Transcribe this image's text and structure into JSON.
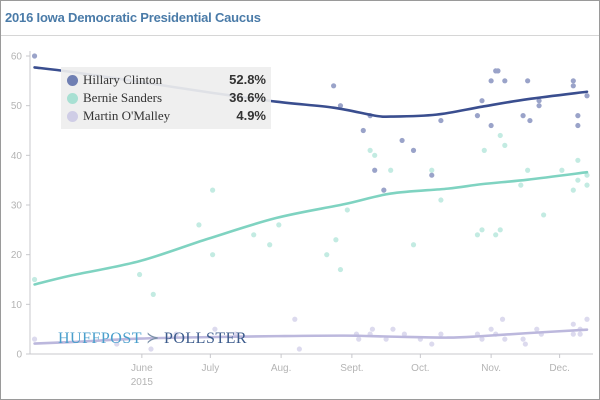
{
  "title": "2016 Iowa Democratic Presidential Caucus",
  "watermark": {
    "left": "HUFFPOST",
    "mark": "≻",
    "right": "POLLSTER"
  },
  "legend": [
    {
      "name": "Hillary Clinton",
      "value": "52.8%",
      "color": "#6f7fb3"
    },
    {
      "name": "Bernie Sanders",
      "value": "36.6%",
      "color": "#a8e0d3"
    },
    {
      "name": "Martin O'Malley",
      "value": "4.9%",
      "color": "#cfcde6"
    }
  ],
  "chart_data": {
    "type": "scatter",
    "title": "2016 Iowa Democratic Presidential Caucus",
    "xlabel": "",
    "ylabel": "",
    "ylim": [
      0,
      60
    ],
    "yticks": [
      0,
      10,
      20,
      30,
      40,
      50,
      60
    ],
    "x_unit": "days since 2015-05-01",
    "xlim": [
      -18,
      226
    ],
    "xticks": [
      {
        "label": "June",
        "sub": "2015",
        "day": 31
      },
      {
        "label": "July",
        "sub": "",
        "day": 61
      },
      {
        "label": "Aug.",
        "sub": "",
        "day": 92
      },
      {
        "label": "Sept.",
        "sub": "",
        "day": 123
      },
      {
        "label": "Oct.",
        "sub": "",
        "day": 153
      },
      {
        "label": "Nov.",
        "sub": "",
        "day": 184
      },
      {
        "label": "Dec.",
        "sub": "",
        "day": 214
      }
    ],
    "grid": false,
    "legend_position": "top-left",
    "series": [
      {
        "name": "Hillary Clinton",
        "line_color": "#3a4e8f",
        "point_color": "#9aa3c9",
        "trend": [
          [
            -16,
            57.7
          ],
          [
            0,
            56.8
          ],
          [
            30,
            54.8
          ],
          [
            60,
            52.7
          ],
          [
            90,
            50.8
          ],
          [
            115,
            49.6
          ],
          [
            133,
            48
          ],
          [
            140,
            47.8
          ],
          [
            160,
            48.2
          ],
          [
            180,
            49.8
          ],
          [
            200,
            51.3
          ],
          [
            226,
            52.8
          ]
        ],
        "points": [
          [
            -16,
            60
          ],
          [
            115,
            54
          ],
          [
            118,
            50
          ],
          [
            128,
            45
          ],
          [
            131,
            48
          ],
          [
            133,
            37
          ],
          [
            137,
            33
          ],
          [
            145,
            43
          ],
          [
            150,
            41
          ],
          [
            158,
            36
          ],
          [
            162,
            47
          ],
          [
            178,
            48
          ],
          [
            180,
            51
          ],
          [
            184,
            46
          ],
          [
            184,
            55
          ],
          [
            186,
            57
          ],
          [
            187,
            57
          ],
          [
            190,
            55
          ],
          [
            198,
            48
          ],
          [
            200,
            55
          ],
          [
            201,
            47
          ],
          [
            205,
            50
          ],
          [
            205,
            51
          ],
          [
            220,
            55
          ],
          [
            220,
            54
          ],
          [
            222,
            48
          ],
          [
            222,
            46
          ],
          [
            226,
            52
          ]
        ]
      },
      {
        "name": "Bernie Sanders",
        "line_color": "#7fd3c1",
        "point_color": "#c3ebe2",
        "trend": [
          [
            -16,
            14
          ],
          [
            0,
            15.8
          ],
          [
            30,
            18.7
          ],
          [
            60,
            23.2
          ],
          [
            90,
            27.4
          ],
          [
            120,
            30.2
          ],
          [
            140,
            32.3
          ],
          [
            165,
            33.3
          ],
          [
            180,
            34.2
          ],
          [
            200,
            35.1
          ],
          [
            226,
            36.6
          ]
        ],
        "points": [
          [
            -16,
            15
          ],
          [
            30,
            16
          ],
          [
            36,
            12
          ],
          [
            56,
            26
          ],
          [
            62,
            33
          ],
          [
            62,
            20
          ],
          [
            80,
            24
          ],
          [
            87,
            22
          ],
          [
            91,
            26
          ],
          [
            112,
            20
          ],
          [
            116,
            23
          ],
          [
            118,
            17
          ],
          [
            121,
            29
          ],
          [
            131,
            41
          ],
          [
            133,
            40
          ],
          [
            140,
            37
          ],
          [
            150,
            22
          ],
          [
            158,
            37
          ],
          [
            162,
            31
          ],
          [
            178,
            24
          ],
          [
            180,
            25
          ],
          [
            181,
            41
          ],
          [
            186,
            24
          ],
          [
            188,
            25
          ],
          [
            188,
            44
          ],
          [
            190,
            42
          ],
          [
            197,
            34
          ],
          [
            200,
            37
          ],
          [
            207,
            28
          ],
          [
            215,
            37
          ],
          [
            220,
            33
          ],
          [
            222,
            35
          ],
          [
            222,
            39
          ],
          [
            226,
            36
          ],
          [
            226,
            34
          ]
        ]
      },
      {
        "name": "Martin O'Malley",
        "line_color": "#bcb8dd",
        "point_color": "#dcdaee",
        "trend": [
          [
            -16,
            2.1
          ],
          [
            0,
            2.4
          ],
          [
            30,
            3.1
          ],
          [
            60,
            3.4
          ],
          [
            90,
            3.6
          ],
          [
            120,
            3.7
          ],
          [
            140,
            3.5
          ],
          [
            165,
            3.3
          ],
          [
            180,
            3.6
          ],
          [
            200,
            4.2
          ],
          [
            226,
            4.9
          ]
        ],
        "points": [
          [
            -16,
            3
          ],
          [
            20,
            2
          ],
          [
            35,
            1
          ],
          [
            46,
            4
          ],
          [
            63,
            5
          ],
          [
            72,
            4
          ],
          [
            98,
            7
          ],
          [
            100,
            1
          ],
          [
            125,
            4
          ],
          [
            126,
            3
          ],
          [
            131,
            4
          ],
          [
            132,
            5
          ],
          [
            138,
            3
          ],
          [
            141,
            5
          ],
          [
            146,
            4
          ],
          [
            153,
            3
          ],
          [
            158,
            2
          ],
          [
            162,
            4
          ],
          [
            178,
            4
          ],
          [
            180,
            3
          ],
          [
            184,
            5
          ],
          [
            186,
            4
          ],
          [
            189,
            7
          ],
          [
            190,
            3
          ],
          [
            198,
            3
          ],
          [
            199,
            2
          ],
          [
            204,
            5
          ],
          [
            206,
            4
          ],
          [
            220,
            6
          ],
          [
            220,
            4
          ],
          [
            223,
            5
          ],
          [
            223,
            4
          ],
          [
            226,
            7
          ]
        ]
      }
    ]
  }
}
